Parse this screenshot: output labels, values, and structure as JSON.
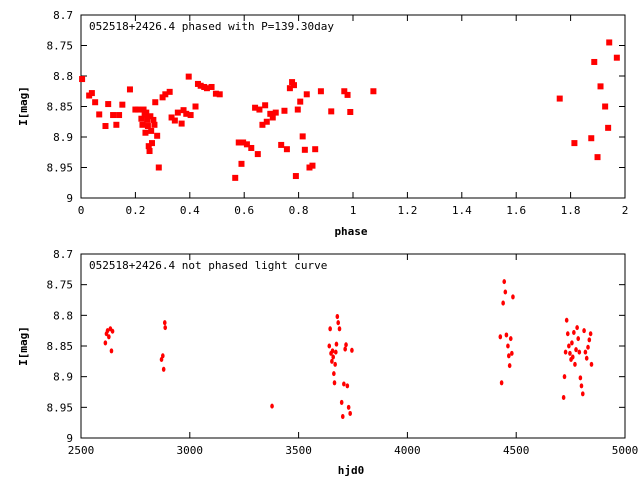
{
  "chart_data": [
    {
      "type": "scatter",
      "title": "052518+2426.4 phased with P=139.30day",
      "xlabel": "phase",
      "ylabel": "I[mag]",
      "xlim": [
        0,
        2
      ],
      "ylim": [
        8.7,
        9.0
      ],
      "y_inverted": true,
      "grid": false,
      "marker_color": "#ff0000",
      "x_ticks": [
        "0",
        "0.2",
        "0.4",
        "0.6",
        "0.8",
        "1",
        "1.2",
        "1.4",
        "1.6",
        "1.8",
        "2"
      ],
      "y_ticks": [
        "8.7",
        "8.75",
        "8.8",
        "8.85",
        "8.9",
        "8.95",
        "9"
      ],
      "points": [
        [
          0.004,
          8.805
        ],
        [
          0.03,
          8.832
        ],
        [
          0.04,
          8.828
        ],
        [
          0.052,
          8.843
        ],
        [
          0.067,
          8.863
        ],
        [
          0.09,
          8.882
        ],
        [
          0.1,
          8.846
        ],
        [
          0.118,
          8.864
        ],
        [
          0.13,
          8.88
        ],
        [
          0.14,
          8.864
        ],
        [
          0.152,
          8.847
        ],
        [
          0.18,
          8.822
        ],
        [
          0.2,
          8.855
        ],
        [
          0.21,
          8.855
        ],
        [
          0.222,
          8.87
        ],
        [
          0.226,
          8.88
        ],
        [
          0.23,
          8.855
        ],
        [
          0.234,
          8.863
        ],
        [
          0.237,
          8.893
        ],
        [
          0.24,
          8.86
        ],
        [
          0.243,
          8.872
        ],
        [
          0.246,
          8.882
        ],
        [
          0.249,
          8.915
        ],
        [
          0.252,
          8.923
        ],
        [
          0.255,
          8.866
        ],
        [
          0.258,
          8.89
        ],
        [
          0.261,
          8.91
        ],
        [
          0.266,
          8.872
        ],
        [
          0.27,
          8.88
        ],
        [
          0.273,
          8.843
        ],
        [
          0.28,
          8.898
        ],
        [
          0.286,
          8.95
        ],
        [
          0.3,
          8.835
        ],
        [
          0.31,
          8.83
        ],
        [
          0.326,
          8.826
        ],
        [
          0.333,
          8.868
        ],
        [
          0.345,
          8.873
        ],
        [
          0.356,
          8.86
        ],
        [
          0.37,
          8.878
        ],
        [
          0.377,
          8.856
        ],
        [
          0.387,
          8.862
        ],
        [
          0.396,
          8.801
        ],
        [
          0.403,
          8.864
        ],
        [
          0.421,
          8.85
        ],
        [
          0.43,
          8.813
        ],
        [
          0.44,
          8.816
        ],
        [
          0.453,
          8.818
        ],
        [
          0.463,
          8.82
        ],
        [
          0.48,
          8.818
        ],
        [
          0.496,
          8.829
        ],
        [
          0.51,
          8.83
        ],
        [
          0.567,
          8.967
        ],
        [
          0.58,
          8.909
        ],
        [
          0.59,
          8.944
        ],
        [
          0.596,
          8.909
        ],
        [
          0.61,
          8.912
        ],
        [
          0.626,
          8.918
        ],
        [
          0.64,
          8.852
        ],
        [
          0.65,
          8.928
        ],
        [
          0.656,
          8.855
        ],
        [
          0.667,
          8.88
        ],
        [
          0.677,
          8.848
        ],
        [
          0.683,
          8.875
        ],
        [
          0.696,
          8.862
        ],
        [
          0.705,
          8.868
        ],
        [
          0.716,
          8.86
        ],
        [
          0.736,
          8.913
        ],
        [
          0.748,
          8.857
        ],
        [
          0.757,
          8.92
        ],
        [
          0.768,
          8.82
        ],
        [
          0.776,
          8.81
        ],
        [
          0.783,
          8.815
        ],
        [
          0.79,
          8.964
        ],
        [
          0.797,
          8.855
        ],
        [
          0.806,
          8.842
        ],
        [
          0.815,
          8.899
        ],
        [
          0.823,
          8.921
        ],
        [
          0.83,
          8.83
        ],
        [
          0.84,
          8.95
        ],
        [
          0.851,
          8.947
        ],
        [
          0.861,
          8.92
        ],
        [
          0.882,
          8.825
        ],
        [
          0.92,
          8.858
        ],
        [
          0.968,
          8.825
        ],
        [
          0.98,
          8.831
        ],
        [
          0.99,
          8.859
        ],
        [
          1.075,
          8.825
        ],
        [
          1.76,
          8.837
        ],
        [
          1.814,
          8.91
        ],
        [
          1.876,
          8.902
        ],
        [
          1.887,
          8.777
        ],
        [
          1.899,
          8.933
        ],
        [
          1.91,
          8.817
        ],
        [
          1.927,
          8.85
        ],
        [
          1.938,
          8.885
        ],
        [
          1.942,
          8.745
        ],
        [
          1.97,
          8.77
        ]
      ]
    },
    {
      "type": "scatter",
      "title": "052518+2426.4 not phased light curve",
      "xlabel": "hjd0",
      "ylabel": "I[mag]",
      "xlim": [
        2500,
        5000
      ],
      "ylim": [
        8.7,
        9.0
      ],
      "y_inverted": true,
      "grid": false,
      "marker_color": "#ff0000",
      "x_ticks": [
        "2500",
        "3000",
        "3500",
        "4000",
        "4500",
        "5000"
      ],
      "y_ticks": [
        "8.7",
        "8.75",
        "8.8",
        "8.85",
        "8.9",
        "8.95",
        "9"
      ],
      "points": [
        [
          2612,
          8.845
        ],
        [
          2617,
          8.83
        ],
        [
          2622,
          8.825
        ],
        [
          2628,
          8.835
        ],
        [
          2635,
          8.822
        ],
        [
          2640,
          8.858
        ],
        [
          2645,
          8.826
        ],
        [
          2870,
          8.872
        ],
        [
          2876,
          8.866
        ],
        [
          2880,
          8.888
        ],
        [
          2885,
          8.812
        ],
        [
          2887,
          8.82
        ],
        [
          3378,
          8.948
        ],
        [
          3641,
          8.85
        ],
        [
          3645,
          8.822
        ],
        [
          3649,
          8.862
        ],
        [
          3653,
          8.875
        ],
        [
          3656,
          8.858
        ],
        [
          3659,
          8.868
        ],
        [
          3662,
          8.895
        ],
        [
          3665,
          8.91
        ],
        [
          3668,
          8.88
        ],
        [
          3671,
          8.86
        ],
        [
          3674,
          8.847
        ],
        [
          3678,
          8.802
        ],
        [
          3682,
          8.812
        ],
        [
          3688,
          8.822
        ],
        [
          3698,
          8.942
        ],
        [
          3703,
          8.965
        ],
        [
          3708,
          8.912
        ],
        [
          3714,
          8.855
        ],
        [
          3718,
          8.848
        ],
        [
          3724,
          8.915
        ],
        [
          3730,
          8.95
        ],
        [
          3737,
          8.96
        ],
        [
          3745,
          8.857
        ],
        [
          4427,
          8.835
        ],
        [
          4433,
          8.91
        ],
        [
          4440,
          8.78
        ],
        [
          4445,
          8.745
        ],
        [
          4450,
          8.762
        ],
        [
          4455,
          8.832
        ],
        [
          4462,
          8.85
        ],
        [
          4466,
          8.866
        ],
        [
          4470,
          8.882
        ],
        [
          4475,
          8.838
        ],
        [
          4480,
          8.862
        ],
        [
          4485,
          8.77
        ],
        [
          4718,
          8.934
        ],
        [
          4722,
          8.9
        ],
        [
          4727,
          8.86
        ],
        [
          4732,
          8.808
        ],
        [
          4737,
          8.83
        ],
        [
          4742,
          8.85
        ],
        [
          4747,
          8.862
        ],
        [
          4752,
          8.872
        ],
        [
          4756,
          8.845
        ],
        [
          4760,
          8.868
        ],
        [
          4765,
          8.828
        ],
        [
          4770,
          8.88
        ],
        [
          4775,
          8.856
        ],
        [
          4780,
          8.82
        ],
        [
          4785,
          8.838
        ],
        [
          4790,
          8.86
        ],
        [
          4795,
          8.902
        ],
        [
          4800,
          8.915
        ],
        [
          4806,
          8.928
        ],
        [
          4812,
          8.825
        ],
        [
          4818,
          8.86
        ],
        [
          4824,
          8.87
        ],
        [
          4830,
          8.852
        ],
        [
          4836,
          8.84
        ],
        [
          4842,
          8.83
        ],
        [
          4846,
          8.88
        ]
      ]
    }
  ]
}
